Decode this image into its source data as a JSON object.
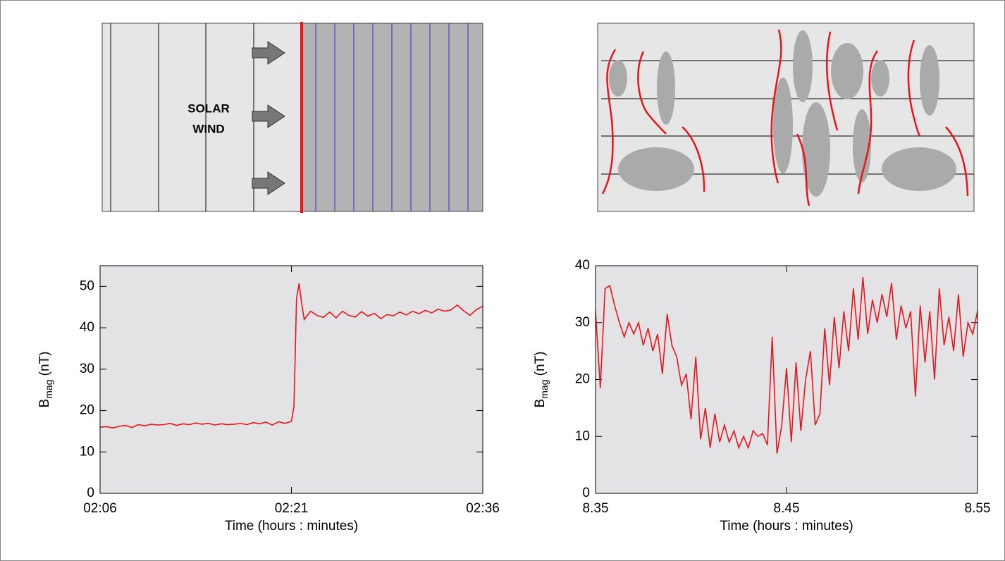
{
  "diagram": {
    "label_lines": [
      "SOLAR",
      "WIND"
    ]
  },
  "chart_data": [
    {
      "type": "line",
      "color": "#e8141c",
      "xlabel": "Time (hours : minutes)",
      "ylabel": {
        "base": "B",
        "sub": "mag",
        "rest": " (nT)"
      },
      "xlim": [
        126,
        156
      ],
      "xticks": [
        {
          "value": 126,
          "label": "02:06"
        },
        {
          "value": 141,
          "label": "02:21"
        },
        {
          "value": 156,
          "label": "02:36"
        }
      ],
      "ylim": [
        0,
        55
      ],
      "yticks": [
        0,
        10,
        20,
        30,
        40,
        50
      ],
      "x": [
        126,
        126.5,
        127,
        127.5,
        128,
        128.5,
        129,
        129.5,
        130,
        130.5,
        131,
        131.5,
        132,
        132.5,
        133,
        133.5,
        134,
        134.5,
        135,
        135.5,
        136,
        136.5,
        137,
        137.5,
        138,
        138.5,
        139,
        139.5,
        140,
        140.5,
        141,
        141.2,
        141.4,
        141.6,
        141.8,
        142,
        142.5,
        143,
        143.5,
        144,
        144.5,
        145,
        145.5,
        146,
        146.5,
        147,
        147.5,
        148,
        148.5,
        149,
        149.5,
        150,
        150.5,
        151,
        151.5,
        152,
        152.5,
        153,
        153.5,
        154,
        154.5,
        155,
        155.5,
        156
      ],
      "values": [
        16,
        16.1,
        15.8,
        16.2,
        16.4,
        15.9,
        16.6,
        16.3,
        16.7,
        16.5,
        16.6,
        16.9,
        16.4,
        16.8,
        16.6,
        17,
        16.7,
        16.9,
        16.5,
        16.8,
        16.6,
        16.7,
        16.9,
        16.6,
        17.1,
        16.8,
        17.2,
        16.5,
        17.3,
        16.9,
        17.4,
        21,
        47,
        50.7,
        46,
        42,
        44,
        43,
        42.5,
        43.8,
        42.4,
        44,
        43,
        42.6,
        43.9,
        42.8,
        43.5,
        42.2,
        43.2,
        42.9,
        43.8,
        43.1,
        44,
        43.4,
        44.2,
        43.6,
        44.5,
        44,
        44.3,
        45.5,
        44.1,
        43,
        44.4,
        45.2
      ]
    },
    {
      "type": "line",
      "color": "#e8141c",
      "xlabel": "Time (hours : minutes)",
      "ylabel": {
        "base": "B",
        "sub": "mag",
        "rest": " (nT)"
      },
      "xlim": [
        8.35,
        8.55
      ],
      "xticks": [
        {
          "value": 8.35,
          "label": "8.35"
        },
        {
          "value": 8.45,
          "label": "8.45"
        },
        {
          "value": 8.55,
          "label": "8.55"
        }
      ],
      "ylim": [
        0,
        40
      ],
      "yticks": [
        0,
        10,
        20,
        30,
        40
      ],
      "x": [
        8.35,
        8.3525,
        8.355,
        8.3575,
        8.36,
        8.3625,
        8.365,
        8.3675,
        8.37,
        8.3725,
        8.375,
        8.3775,
        8.38,
        8.3825,
        8.385,
        8.3875,
        8.39,
        8.3925,
        8.395,
        8.3975,
        8.4,
        8.4025,
        8.405,
        8.4075,
        8.41,
        8.4125,
        8.415,
        8.4175,
        8.42,
        8.4225,
        8.425,
        8.4275,
        8.43,
        8.4325,
        8.435,
        8.4375,
        8.44,
        8.4425,
        8.445,
        8.4475,
        8.45,
        8.4525,
        8.455,
        8.4575,
        8.46,
        8.4625,
        8.465,
        8.4675,
        8.47,
        8.4725,
        8.475,
        8.4775,
        8.48,
        8.4825,
        8.485,
        8.4875,
        8.49,
        8.4925,
        8.495,
        8.4975,
        8.5,
        8.5025,
        8.505,
        8.5075,
        8.51,
        8.5125,
        8.515,
        8.5175,
        8.52,
        8.5225,
        8.525,
        8.5275,
        8.53,
        8.5325,
        8.535,
        8.5375,
        8.54,
        8.5425,
        8.545,
        8.5475,
        8.55
      ],
      "values": [
        32,
        18.5,
        36,
        36.5,
        33,
        30,
        27.5,
        30,
        28,
        30,
        26,
        29,
        25,
        28,
        21,
        31.5,
        26,
        24,
        19,
        21,
        13,
        24,
        9.5,
        15,
        8,
        14,
        9,
        12,
        9,
        11,
        8,
        10,
        8,
        11,
        10,
        10.5,
        8.5,
        27.5,
        7,
        12,
        22,
        9,
        23,
        11,
        20,
        25,
        12,
        14,
        29,
        19,
        31,
        22,
        32,
        25,
        36,
        27,
        38,
        28,
        34,
        30,
        35,
        31,
        37,
        27,
        33,
        29,
        32,
        17,
        33,
        23,
        32,
        20,
        36,
        26,
        31,
        25,
        35,
        24,
        30,
        28,
        32
      ]
    }
  ]
}
